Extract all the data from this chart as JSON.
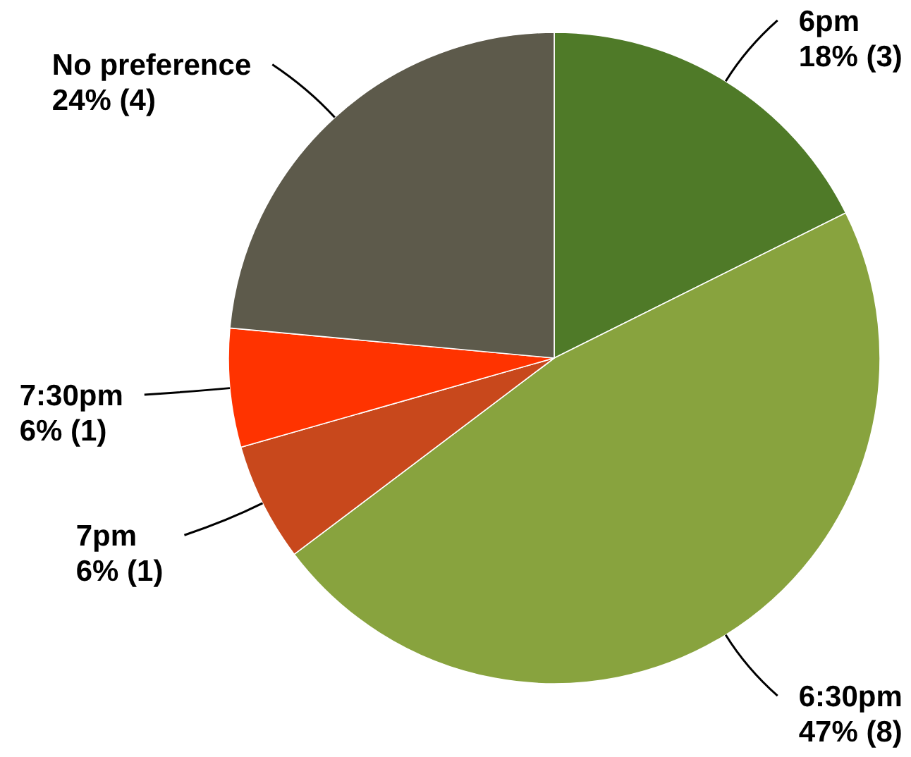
{
  "chart_data": {
    "type": "pie",
    "categories": [
      "6pm",
      "6:30pm",
      "7pm",
      "7:30pm",
      "No preference"
    ],
    "values": [
      3,
      8,
      1,
      1,
      4
    ],
    "colors": [
      "#4f7a28",
      "#88a33e",
      "#c8481c",
      "#ff3300",
      "#5d5a4b"
    ],
    "value_labels": [
      "18% (3)",
      "47% (8)",
      "6% (1)",
      "6% (1)",
      "24% (4)"
    ]
  }
}
